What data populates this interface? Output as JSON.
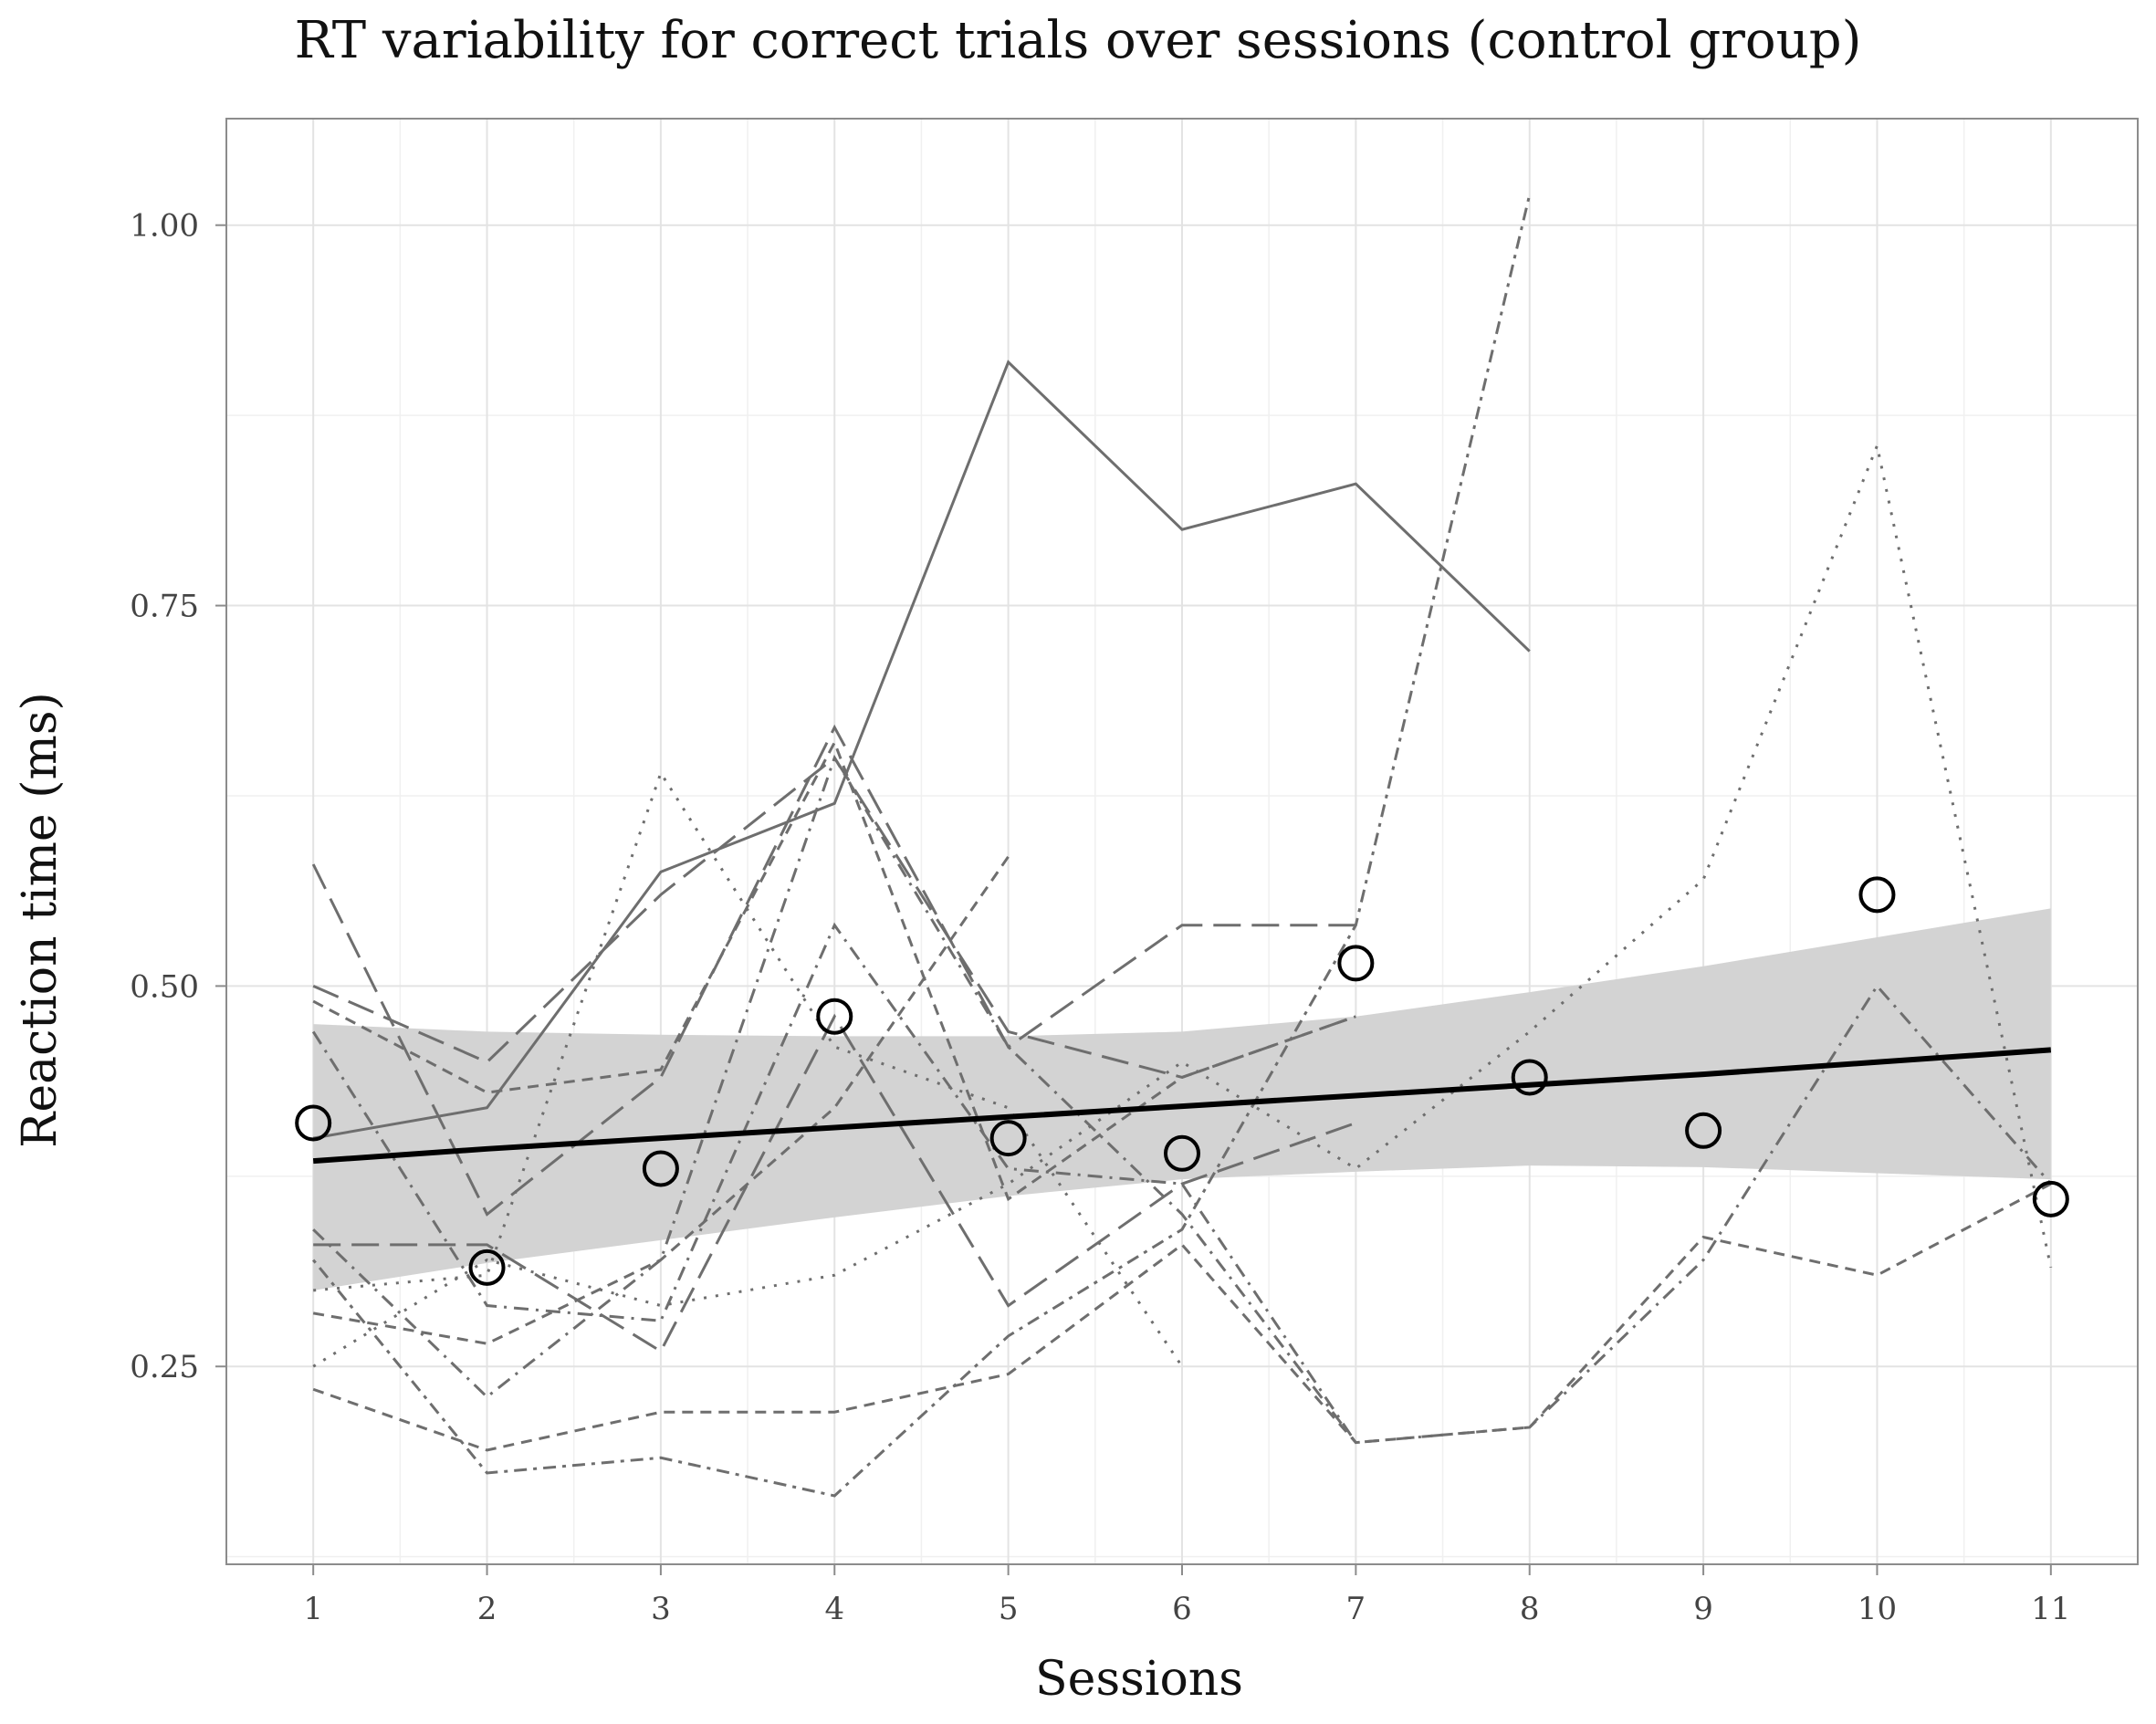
{
  "chart_data": {
    "type": "line",
    "title": "RT variability for correct trials over sessions (control group)",
    "xlabel": "Sessions",
    "ylabel": "Reaction time (ms)",
    "x": [
      1,
      2,
      3,
      4,
      5,
      6,
      7,
      8,
      9,
      10,
      11
    ],
    "x_tick_labels": [
      "1",
      "2",
      "3",
      "4",
      "5",
      "6",
      "7",
      "8",
      "9",
      "10",
      "11"
    ],
    "y_ticks": [
      0.25,
      0.5,
      0.75,
      1.0
    ],
    "y_tick_labels": [
      "0.25",
      "0.50",
      "0.75",
      "1.00"
    ],
    "xlim": [
      0.5,
      11.5
    ],
    "ylim": [
      0.12,
      1.07
    ],
    "grid": true,
    "legend": "none",
    "colors": {
      "individual_lines": "#6e6e6e",
      "trend_line": "#000000",
      "confidence_band": "#d3d3d3",
      "means": "#000000",
      "grid": "#e3e3e3",
      "axis": "#8c8c8c"
    },
    "individual_series": [
      {
        "dash": "solid",
        "values": [
          0.4,
          0.42,
          0.575,
          0.62,
          0.91,
          0.8,
          0.83,
          0.72,
          null,
          null,
          null
        ]
      },
      {
        "dash": "dotted",
        "values": [
          0.25,
          0.32,
          0.29,
          0.31,
          0.37,
          0.45,
          0.38,
          0.47,
          0.57,
          0.855,
          0.315
        ]
      },
      {
        "dash": "dashdot",
        "values": [
          0.34,
          0.23,
          0.32,
          0.65,
          0.46,
          0.35,
          0.2,
          null,
          null,
          null,
          null
        ]
      },
      {
        "dash": "longdash",
        "values": [
          0.33,
          0.33,
          0.26,
          0.48,
          0.29,
          0.37,
          0.41,
          null,
          null,
          null,
          null
        ]
      },
      {
        "dash": "dashed",
        "values": [
          0.235,
          0.195,
          0.22,
          0.22,
          0.245,
          0.33,
          0.2,
          0.21,
          0.335,
          0.31,
          0.37
        ]
      },
      {
        "dash": "dotdash",
        "values": [
          0.32,
          0.18,
          0.19,
          0.165,
          0.27,
          0.34,
          0.54,
          1.02,
          null,
          null,
          null
        ]
      },
      {
        "dash": "longdash",
        "values": [
          0.58,
          0.35,
          0.44,
          0.67,
          0.46,
          0.54,
          0.54,
          null,
          null,
          null,
          null
        ]
      },
      {
        "dash": "dashed",
        "values": [
          0.49,
          0.43,
          0.445,
          0.66,
          0.36,
          0.44,
          0.48,
          null,
          null,
          null,
          null
        ]
      },
      {
        "dash": "dotted",
        "values": [
          0.3,
          0.31,
          0.64,
          0.46,
          0.42,
          0.25,
          null,
          null,
          null,
          null,
          null
        ]
      },
      {
        "dash": "dashdot",
        "values": [
          0.47,
          0.29,
          0.28,
          0.54,
          0.38,
          0.37,
          0.2,
          0.21,
          0.32,
          0.5,
          0.37
        ]
      },
      {
        "dash": "longdash",
        "values": [
          0.5,
          0.45,
          0.56,
          0.65,
          0.47,
          0.44,
          0.48,
          null,
          null,
          null,
          null
        ]
      },
      {
        "dash": "dashed",
        "values": [
          0.285,
          0.265,
          0.32,
          0.42,
          0.585,
          null,
          null,
          null,
          null,
          null,
          null
        ]
      }
    ],
    "session_means": [
      0.41,
      0.315,
      0.38,
      0.48,
      0.4,
      0.39,
      0.515,
      0.44,
      0.405,
      0.56,
      0.36
    ],
    "trend_line": {
      "values": [
        0.385,
        0.393,
        0.4,
        0.407,
        0.414,
        0.421,
        0.428,
        0.435,
        0.442,
        0.45,
        0.458
      ]
    },
    "confidence_band": {
      "upper": [
        0.475,
        0.47,
        0.468,
        0.467,
        0.467,
        0.47,
        0.48,
        0.496,
        0.513,
        0.532,
        0.551
      ],
      "lower": [
        0.3,
        0.318,
        0.333,
        0.348,
        0.362,
        0.373,
        0.378,
        0.382,
        0.381,
        0.377,
        0.373
      ]
    }
  }
}
